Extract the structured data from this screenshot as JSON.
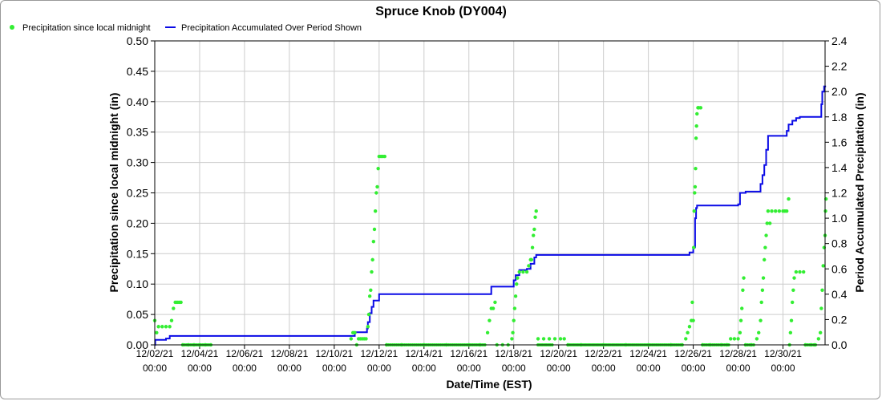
{
  "chart_data": {
    "type": "scatter+line",
    "title": "Spruce Knob (DY004)",
    "xlabel": "Date/Time (EST)",
    "ylabel_left": "Precipitation since local midnight (in)",
    "ylabel_right": "Period Accumulated Precipitation (in)",
    "ylim_left": [
      0,
      0.5
    ],
    "ylim_right": [
      0,
      2.4
    ],
    "yticks_left": [
      "0.00",
      "0.05",
      "0.10",
      "0.15",
      "0.20",
      "0.25",
      "0.30",
      "0.35",
      "0.40",
      "0.45",
      "0.50"
    ],
    "yticks_right": [
      "0.0",
      "0.2",
      "0.4",
      "0.6",
      "0.8",
      "1.0",
      "1.2",
      "1.4",
      "1.6",
      "1.8",
      "2.0",
      "2.2",
      "2.4"
    ],
    "xlim_days": [
      "12/02/21 00:00",
      "12/31/21 21:00"
    ],
    "xticks": [
      {
        "date": "12/02/21",
        "time": "00:00"
      },
      {
        "date": "12/04/21",
        "time": "00:00"
      },
      {
        "date": "12/06/21",
        "time": "00:00"
      },
      {
        "date": "12/08/21",
        "time": "00:00"
      },
      {
        "date": "12/10/21",
        "time": "00:00"
      },
      {
        "date": "12/12/21",
        "time": "00:00"
      },
      {
        "date": "12/14/21",
        "time": "00:00"
      },
      {
        "date": "12/16/21",
        "time": "00:00"
      },
      {
        "date": "12/18/21",
        "time": "00:00"
      },
      {
        "date": "12/20/21",
        "time": "00:00"
      },
      {
        "date": "12/22/21",
        "time": "00:00"
      },
      {
        "date": "12/24/21",
        "time": "00:00"
      },
      {
        "date": "12/26/21",
        "time": "00:00"
      },
      {
        "date": "12/28/21",
        "time": "00:00"
      },
      {
        "date": "12/30/21",
        "time": "00:00"
      }
    ],
    "grid": true,
    "legend_position": "top-left",
    "series": [
      {
        "name": "Precipitation since local midnight",
        "style": "points",
        "color": "#33ee33",
        "axis": "left",
        "points": [
          [
            "12/02/21 00:00",
            0.04
          ],
          [
            "12/02/21 02:00",
            0.02
          ],
          [
            "12/02/21 04:00",
            0.03
          ],
          [
            "12/02/21 08:00",
            0.03
          ],
          [
            "12/02/21 12:00",
            0.03
          ],
          [
            "12/02/21 16:00",
            0.03
          ],
          [
            "12/02/21 18:00",
            0.04
          ],
          [
            "12/02/21 20:00",
            0.06
          ],
          [
            "12/02/21 22:00",
            0.07
          ],
          [
            "12/03/21 00:00",
            0.07
          ],
          [
            "12/03/21 02:00",
            0.07
          ],
          [
            "12/03/21 04:00",
            0.07
          ],
          [
            "12/03/21 06:00",
            0.0
          ],
          [
            "12/03/21 12:00",
            0.0
          ],
          [
            "12/03/21 18:00",
            0.0
          ],
          [
            "12/04/21 00:00",
            0.0
          ],
          [
            "12/04/21 06:00",
            0.0
          ],
          [
            "12/04/21 12:00",
            0.0
          ],
          [
            "12/10/21 18:00",
            0.01
          ],
          [
            "12/10/21 20:00",
            0.02
          ],
          [
            "12/10/21 22:00",
            0.02
          ],
          [
            "12/11/21 00:00",
            0.0
          ],
          [
            "12/11/21 02:00",
            0.01
          ],
          [
            "12/11/21 04:00",
            0.01
          ],
          [
            "12/11/21 06:00",
            0.01
          ],
          [
            "12/11/21 08:00",
            0.01
          ],
          [
            "12/11/21 10:00",
            0.01
          ],
          [
            "12/11/21 12:00",
            0.03
          ],
          [
            "12/11/21 13:00",
            0.05
          ],
          [
            "12/11/21 14:00",
            0.08
          ],
          [
            "12/11/21 15:00",
            0.09
          ],
          [
            "12/11/21 16:00",
            0.12
          ],
          [
            "12/11/21 17:00",
            0.14
          ],
          [
            "12/11/21 18:00",
            0.17
          ],
          [
            "12/11/21 19:00",
            0.19
          ],
          [
            "12/11/21 20:00",
            0.22
          ],
          [
            "12/11/21 21:00",
            0.25
          ],
          [
            "12/11/21 22:00",
            0.26
          ],
          [
            "12/11/21 23:00",
            0.29
          ],
          [
            "12/12/21 00:00",
            0.31
          ],
          [
            "12/12/21 02:00",
            0.31
          ],
          [
            "12/12/21 04:00",
            0.31
          ],
          [
            "12/12/21 06:00",
            0.31
          ],
          [
            "12/12/21 08:00",
            0.0
          ],
          [
            "12/13/21 00:00",
            0.0
          ],
          [
            "12/14/21 00:00",
            0.0
          ],
          [
            "12/15/21 00:00",
            0.0
          ],
          [
            "12/16/21 00:00",
            0.0
          ],
          [
            "12/16/21 12:00",
            0.0
          ],
          [
            "12/16/21 20:00",
            0.02
          ],
          [
            "12/16/21 22:00",
            0.04
          ],
          [
            "12/17/21 00:00",
            0.06
          ],
          [
            "12/17/21 02:00",
            0.06
          ],
          [
            "12/17/21 04:00",
            0.07
          ],
          [
            "12/17/21 06:00",
            0.0
          ],
          [
            "12/17/21 12:00",
            0.0
          ],
          [
            "12/17/21 18:00",
            0.0
          ],
          [
            "12/17/21 22:00",
            0.01
          ],
          [
            "12/17/21 23:00",
            0.02
          ],
          [
            "12/18/21 00:00",
            0.04
          ],
          [
            "12/18/21 01:00",
            0.06
          ],
          [
            "12/18/21 02:00",
            0.08
          ],
          [
            "12/18/21 03:00",
            0.1
          ],
          [
            "12/18/21 04:00",
            0.11
          ],
          [
            "12/18/21 06:00",
            0.12
          ],
          [
            "12/18/21 10:00",
            0.12
          ],
          [
            "12/18/21 14:00",
            0.12
          ],
          [
            "12/18/21 16:00",
            0.13
          ],
          [
            "12/18/21 18:00",
            0.14
          ],
          [
            "12/18/21 19:00",
            0.14
          ],
          [
            "12/18/21 20:00",
            0.16
          ],
          [
            "12/18/21 21:00",
            0.18
          ],
          [
            "12/18/21 22:00",
            0.19
          ],
          [
            "12/18/21 23:00",
            0.21
          ],
          [
            "12/19/21 00:00",
            0.22
          ],
          [
            "12/19/21 02:00",
            0.01
          ],
          [
            "12/19/21 08:00",
            0.01
          ],
          [
            "12/19/21 14:00",
            0.01
          ],
          [
            "12/19/21 20:00",
            0.01
          ],
          [
            "12/20/21 02:00",
            0.01
          ],
          [
            "12/20/21 06:00",
            0.01
          ],
          [
            "12/20/21 10:00",
            0.0
          ],
          [
            "12/21/21 00:00",
            0.0
          ],
          [
            "12/22/21 00:00",
            0.0
          ],
          [
            "12/23/21 00:00",
            0.0
          ],
          [
            "12/24/21 00:00",
            0.0
          ],
          [
            "12/25/21 00:00",
            0.0
          ],
          [
            "12/25/21 12:00",
            0.0
          ],
          [
            "12/25/21 16:00",
            0.01
          ],
          [
            "12/25/21 18:00",
            0.02
          ],
          [
            "12/25/21 20:00",
            0.03
          ],
          [
            "12/25/21 22:00",
            0.04
          ],
          [
            "12/26/21 00:00",
            0.04
          ],
          [
            "12/25/21 23:00",
            0.07
          ],
          [
            "12/26/21 00:30",
            0.16
          ],
          [
            "12/26/21 01:00",
            0.22
          ],
          [
            "12/26/21 01:30",
            0.25
          ],
          [
            "12/26/21 02:00",
            0.26
          ],
          [
            "12/26/21 02:30",
            0.29
          ],
          [
            "12/26/21 03:00",
            0.34
          ],
          [
            "12/26/21 03:30",
            0.36
          ],
          [
            "12/26/21 04:00",
            0.38
          ],
          [
            "12/26/21 05:00",
            0.39
          ],
          [
            "12/26/21 06:00",
            0.39
          ],
          [
            "12/26/21 08:00",
            0.39
          ],
          [
            "12/26/21 10:00",
            0.0
          ],
          [
            "12/26/21 18:00",
            0.0
          ],
          [
            "12/27/21 06:00",
            0.0
          ],
          [
            "12/27/21 12:00",
            0.0
          ],
          [
            "12/27/21 16:00",
            0.01
          ],
          [
            "12/27/21 20:00",
            0.01
          ],
          [
            "12/28/21 00:00",
            0.01
          ],
          [
            "12/28/21 02:00",
            0.02
          ],
          [
            "12/28/21 03:00",
            0.04
          ],
          [
            "12/28/21 04:00",
            0.06
          ],
          [
            "12/28/21 05:00",
            0.09
          ],
          [
            "12/28/21 06:00",
            0.11
          ],
          [
            "12/28/21 08:00",
            0.0
          ],
          [
            "12/28/21 14:00",
            0.0
          ],
          [
            "12/28/21 20:00",
            0.01
          ],
          [
            "12/28/21 22:00",
            0.02
          ],
          [
            "12/29/21 00:00",
            0.04
          ],
          [
            "12/29/21 01:00",
            0.07
          ],
          [
            "12/29/21 02:00",
            0.09
          ],
          [
            "12/29/21 03:00",
            0.11
          ],
          [
            "12/29/21 04:00",
            0.14
          ],
          [
            "12/29/21 05:00",
            0.16
          ],
          [
            "12/29/21 06:00",
            0.18
          ],
          [
            "12/29/21 07:00",
            0.2
          ],
          [
            "12/29/21 08:00",
            0.22
          ],
          [
            "12/29/21 10:00",
            0.2
          ],
          [
            "12/29/21 12:00",
            0.22
          ],
          [
            "12/29/21 16:00",
            0.22
          ],
          [
            "12/29/21 20:00",
            0.22
          ],
          [
            "12/30/21 00:00",
            0.22
          ],
          [
            "12/30/21 02:00",
            0.22
          ],
          [
            "12/30/21 04:00",
            0.22
          ],
          [
            "12/30/21 06:00",
            0.24
          ],
          [
            "12/30/21 07:00",
            0.0
          ],
          [
            "12/30/21 08:00",
            0.02
          ],
          [
            "12/30/21 09:00",
            0.04
          ],
          [
            "12/30/21 10:00",
            0.07
          ],
          [
            "12/30/21 11:00",
            0.09
          ],
          [
            "12/30/21 12:00",
            0.11
          ],
          [
            "12/30/21 14:00",
            0.12
          ],
          [
            "12/30/21 18:00",
            0.12
          ],
          [
            "12/30/21 22:00",
            0.12
          ],
          [
            "12/31/21 00:00",
            0.0
          ],
          [
            "12/31/21 06:00",
            0.0
          ],
          [
            "12/31/21 10:00",
            0.0
          ],
          [
            "12/31/21 14:00",
            0.01
          ],
          [
            "12/31/21 16:00",
            0.02
          ],
          [
            "12/31/21 17:00",
            0.06
          ],
          [
            "12/31/21 18:00",
            0.09
          ],
          [
            "12/31/21 19:00",
            0.13
          ],
          [
            "12/31/21 20:00",
            0.16
          ],
          [
            "12/31/21 21:00",
            0.18
          ],
          [
            "12/31/21 21:30",
            0.22
          ],
          [
            "12/31/21 22:00",
            0.24
          ]
        ]
      },
      {
        "name": "Precipitation Accumulated Over Period Shown",
        "style": "line",
        "color": "#0a0ae6",
        "axis": "right",
        "points": [
          [
            "12/02/21 00:00",
            0.0
          ],
          [
            "12/02/21 00:30",
            0.04
          ],
          [
            "12/02/21 08:00",
            0.04
          ],
          [
            "12/02/21 12:00",
            0.05
          ],
          [
            "12/02/21 16:00",
            0.07
          ],
          [
            "12/03/21 00:00",
            0.07
          ],
          [
            "12/10/21 20:00",
            0.07
          ],
          [
            "12/10/21 22:00",
            0.1
          ],
          [
            "12/11/21 10:00",
            0.1
          ],
          [
            "12/11/21 11:00",
            0.13
          ],
          [
            "12/11/21 12:00",
            0.18
          ],
          [
            "12/11/21 14:00",
            0.25
          ],
          [
            "12/11/21 16:00",
            0.3
          ],
          [
            "12/11/21 18:00",
            0.35
          ],
          [
            "12/12/21 00:00",
            0.4
          ],
          [
            "12/16/21 20:00",
            0.4
          ],
          [
            "12/17/21 00:00",
            0.46
          ],
          [
            "12/17/21 22:00",
            0.46
          ],
          [
            "12/18/21 00:00",
            0.51
          ],
          [
            "12/18/21 02:00",
            0.55
          ],
          [
            "12/18/21 06:00",
            0.59
          ],
          [
            "12/18/21 14:00",
            0.6
          ],
          [
            "12/18/21 18:00",
            0.64
          ],
          [
            "12/18/21 22:00",
            0.69
          ],
          [
            "12/19/21 00:00",
            0.71
          ],
          [
            "12/25/21 16:00",
            0.71
          ],
          [
            "12/25/21 20:00",
            0.73
          ],
          [
            "12/26/21 00:00",
            0.77
          ],
          [
            "12/26/21 02:00",
            1.0
          ],
          [
            "12/26/21 03:00",
            1.08
          ],
          [
            "12/26/21 04:00",
            1.1
          ],
          [
            "12/27/21 16:00",
            1.1
          ],
          [
            "12/28/21 00:00",
            1.11
          ],
          [
            "12/28/21 02:00",
            1.2
          ],
          [
            "12/28/21 08:00",
            1.21
          ],
          [
            "12/28/21 20:00",
            1.21
          ],
          [
            "12/29/21 00:00",
            1.27
          ],
          [
            "12/29/21 02:00",
            1.34
          ],
          [
            "12/29/21 04:00",
            1.42
          ],
          [
            "12/29/21 06:00",
            1.54
          ],
          [
            "12/29/21 08:00",
            1.65
          ],
          [
            "12/30/21 02:00",
            1.65
          ],
          [
            "12/30/21 04:00",
            1.69
          ],
          [
            "12/30/21 06:00",
            1.74
          ],
          [
            "12/30/21 10:00",
            1.77
          ],
          [
            "12/30/21 14:00",
            1.79
          ],
          [
            "12/30/21 18:00",
            1.8
          ],
          [
            "12/31/21 16:00",
            1.8
          ],
          [
            "12/31/21 17:00",
            1.9
          ],
          [
            "12/31/21 18:00",
            2.0
          ],
          [
            "12/31/21 20:00",
            2.04
          ],
          [
            "12/31/21 22:00",
            2.04
          ]
        ]
      }
    ]
  }
}
